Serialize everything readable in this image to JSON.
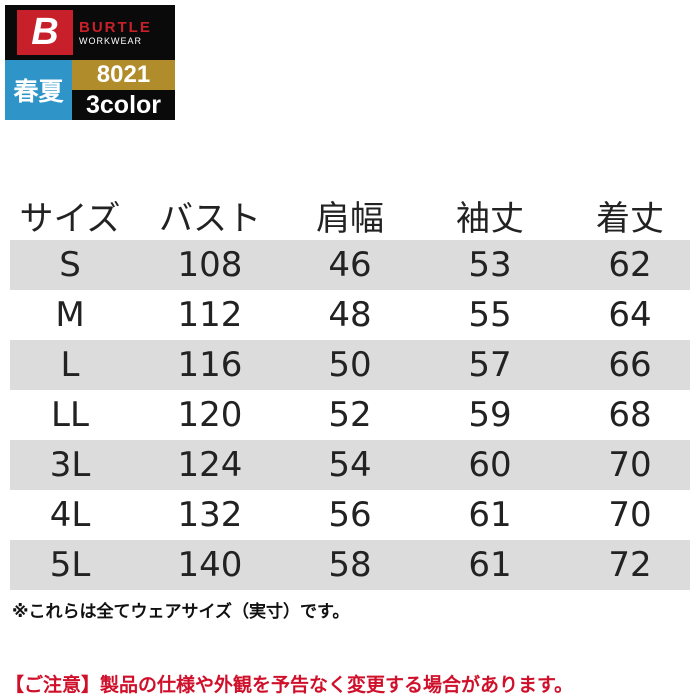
{
  "logo": {
    "mark": "B",
    "brand": "BURTLE",
    "sub": "WORKWEAR",
    "season": "春夏",
    "model": "8021",
    "colors": "3color"
  },
  "table": {
    "headers": [
      "サイズ",
      "バスト",
      "肩幅",
      "袖丈",
      "着丈"
    ],
    "rows": [
      [
        "S",
        "108",
        "46",
        "53",
        "62"
      ],
      [
        "M",
        "112",
        "48",
        "55",
        "64"
      ],
      [
        "L",
        "116",
        "50",
        "57",
        "66"
      ],
      [
        "LL",
        "120",
        "52",
        "59",
        "68"
      ],
      [
        "3L",
        "124",
        "54",
        "60",
        "70"
      ],
      [
        "4L",
        "132",
        "56",
        "61",
        "70"
      ],
      [
        "5L",
        "140",
        "58",
        "61",
        "72"
      ]
    ]
  },
  "note": "※これらは全てウェアサイズ（実寸）です。",
  "warning": "【ご注意】製品の仕様や外観を予告なく変更する場合があります。",
  "colors": {
    "red": "#c8202a",
    "blue": "#2f95c8",
    "gold": "#b08c2a",
    "row_gray": "#dcdcdc",
    "warning": "#d0102b"
  }
}
